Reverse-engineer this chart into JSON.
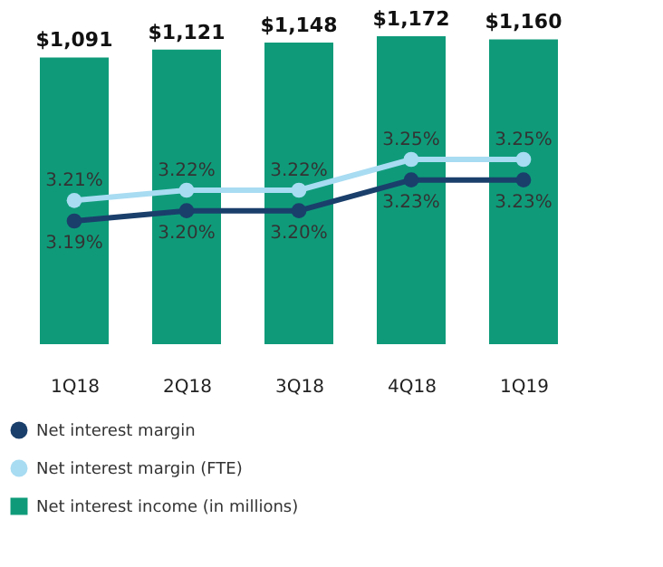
{
  "chart_data": {
    "type": "bar",
    "categories": [
      "1Q18",
      "2Q18",
      "3Q18",
      "4Q18",
      "1Q19"
    ],
    "series": [
      {
        "name": "Net interest income (in millions)",
        "color": "#0f9b7a",
        "values": [
          1091,
          1121,
          1148,
          1172,
          1160
        ],
        "value_labels": [
          "$1,091",
          "$1,121",
          "$1,148",
          "$1,172",
          "$1,160"
        ]
      },
      {
        "name": "Net interest margin",
        "type": "line",
        "axis": "y2",
        "color": "#1a3f6b",
        "values": [
          3.19,
          3.2,
          3.2,
          3.23,
          3.23
        ],
        "value_labels": [
          "3.19%",
          "3.20%",
          "3.20%",
          "3.23%",
          "3.23%"
        ]
      },
      {
        "name": "Net interest margin (FTE)",
        "type": "line",
        "axis": "y2",
        "color": "#a8dcf2",
        "values": [
          3.21,
          3.22,
          3.22,
          3.25,
          3.25
        ],
        "value_labels": [
          "3.21%",
          "3.22%",
          "3.22%",
          "3.25%",
          "3.25%"
        ]
      }
    ],
    "tick_labels": "x",
    "legend": "bottom",
    "marker": "circle",
    "grid": false
  }
}
